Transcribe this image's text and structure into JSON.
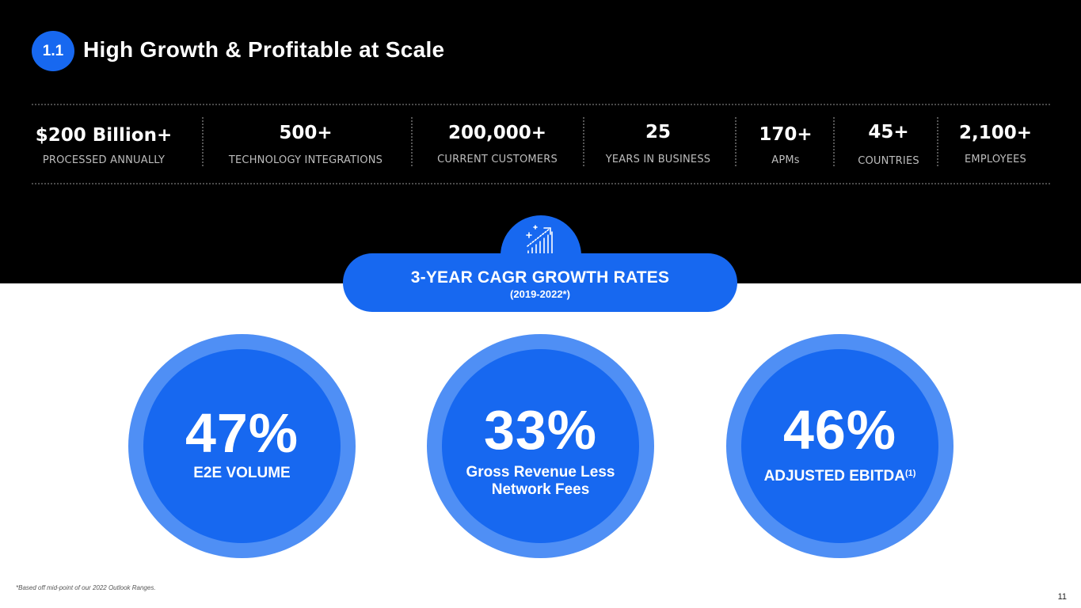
{
  "header": {
    "section_number": "1.1",
    "title": "High Growth & Profitable at Scale"
  },
  "stats": [
    {
      "value": "$200 Billion+",
      "label": "PROCESSED ANNUALLY"
    },
    {
      "value": "500+",
      "label": "TECHNOLOGY INTEGRATIONS"
    },
    {
      "value": "200,000+",
      "label": "CURRENT CUSTOMERS"
    },
    {
      "value": "25",
      "label": "YEARS IN BUSINESS"
    },
    {
      "value": "170+",
      "label": "APMs"
    },
    {
      "value": "45+",
      "label": "COUNTRIES"
    },
    {
      "value": "2,100+",
      "label": "EMPLOYEES"
    }
  ],
  "cagr": {
    "title": "3-YEAR CAGR GROWTH RATES",
    "subtitle": "(2019-2022*)",
    "icon": "growth-chart-icon"
  },
  "metrics": [
    {
      "value": "47%",
      "label": "E2E VOLUME"
    },
    {
      "value": "33%",
      "label_line1": "Gross Revenue Less",
      "label_line2": "Network Fees"
    },
    {
      "value": "46%",
      "label": "ADJUSTED EBITDA",
      "footnote_marker": "(1)"
    }
  ],
  "footnote": "*Based off mid-point of our 2022 Outlook Ranges.",
  "page_number": "11",
  "colors": {
    "brand_blue": "#1768f0",
    "ring_blue": "#4f8ff5",
    "background_dark": "#000000"
  }
}
